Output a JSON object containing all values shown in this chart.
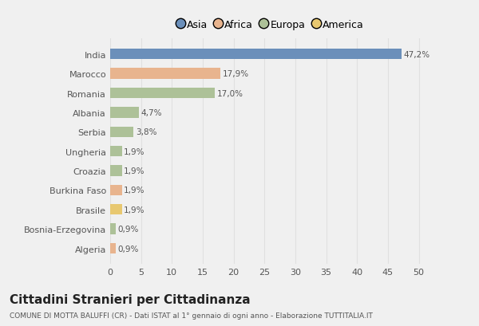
{
  "countries": [
    "India",
    "Marocco",
    "Romania",
    "Albania",
    "Serbia",
    "Ungheria",
    "Croazia",
    "Burkina Faso",
    "Brasile",
    "Bosnia-Erzegovina",
    "Algeria"
  ],
  "values": [
    47.2,
    17.9,
    17.0,
    4.7,
    3.8,
    1.9,
    1.9,
    1.9,
    1.9,
    0.9,
    0.9
  ],
  "labels": [
    "47,2%",
    "17,9%",
    "17,0%",
    "4,7%",
    "3,8%",
    "1,9%",
    "1,9%",
    "1,9%",
    "1,9%",
    "0,9%",
    "0,9%"
  ],
  "colors": [
    "#6b8fba",
    "#e8b48e",
    "#adc198",
    "#adc198",
    "#adc198",
    "#adc198",
    "#adc198",
    "#e8b48e",
    "#e8c870",
    "#adc198",
    "#e8b48e"
  ],
  "legend_labels": [
    "Asia",
    "Africa",
    "Europa",
    "America"
  ],
  "legend_colors": [
    "#6b8fba",
    "#e8b48e",
    "#adc198",
    "#e8c870"
  ],
  "title": "Cittadini Stranieri per Cittadinanza",
  "subtitle": "COMUNE DI MOTTA BALUFFI (CR) - Dati ISTAT al 1° gennaio di ogni anno - Elaborazione TUTTITALIA.IT",
  "xlim": [
    0,
    52
  ],
  "xticks": [
    0,
    5,
    10,
    15,
    20,
    25,
    30,
    35,
    40,
    45,
    50
  ],
  "bg_color": "#f0f0f0",
  "bar_bg_color": "#f0f0f0",
  "grid_color": "#e0e0e0",
  "title_fontsize": 11,
  "subtitle_fontsize": 6.5,
  "label_fontsize": 7.5,
  "tick_fontsize": 8,
  "legend_fontsize": 9
}
